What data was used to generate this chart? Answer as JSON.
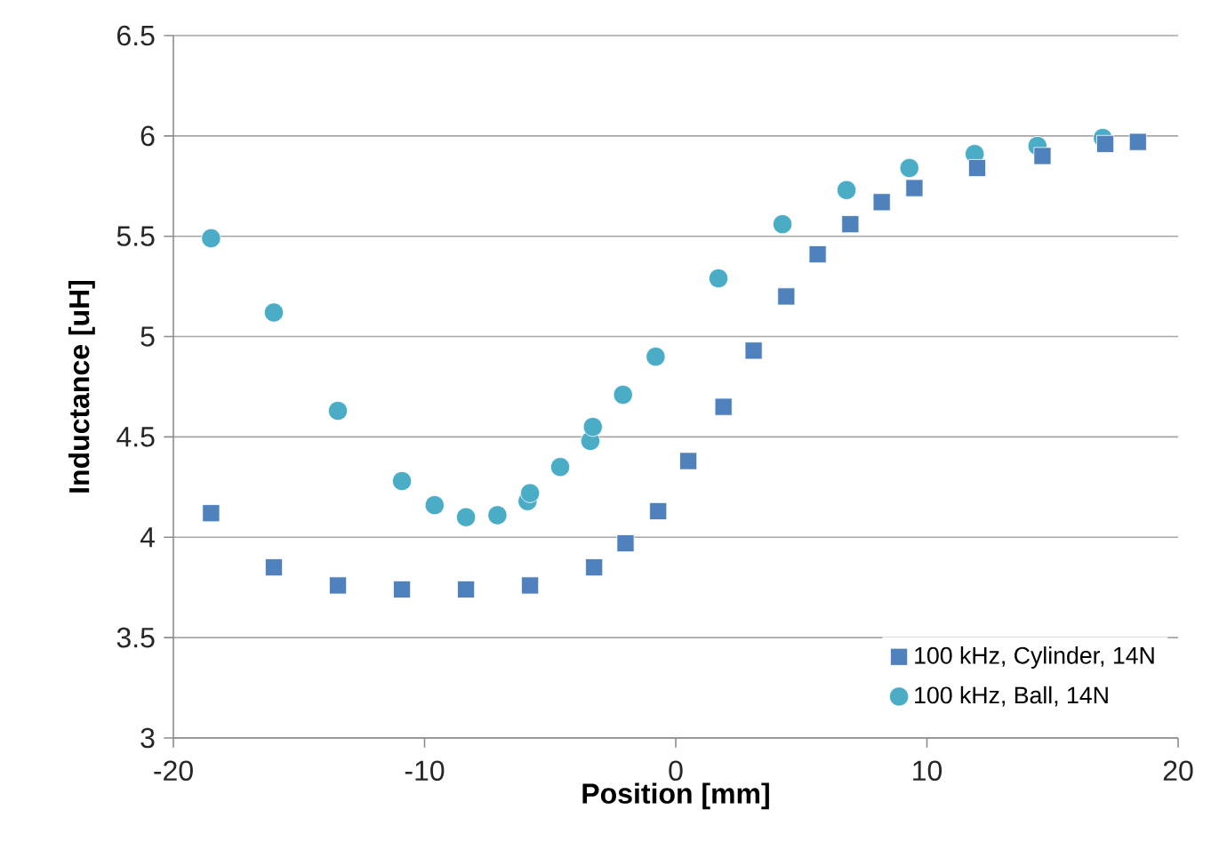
{
  "chart_data": {
    "type": "scatter",
    "xlabel": "Position [mm]",
    "ylabel": "Inductance [uH]",
    "xlim": [
      -20,
      20
    ],
    "xticks": [
      -20,
      -10,
      0,
      10,
      20
    ],
    "ylim": [
      3,
      6.5
    ],
    "yticks": [
      3,
      3.5,
      4,
      4.5,
      5,
      5.5,
      6,
      6.5
    ],
    "grid": "y",
    "legend": "bottom right",
    "series": [
      {
        "name": "100 kHz, Cylinder, 14N",
        "color": "#4f81bd",
        "marker": "square",
        "x": [
          -18.5,
          -16.0,
          -13.45,
          -10.9,
          -8.35,
          -5.8,
          -3.25,
          -2.0,
          -0.7,
          0.5,
          1.9,
          3.1,
          4.4,
          5.65,
          6.95,
          8.2,
          9.5,
          12.0,
          14.6,
          17.1,
          18.4
        ],
        "values": [
          4.12,
          3.85,
          3.76,
          3.74,
          3.74,
          3.76,
          3.85,
          3.97,
          4.13,
          4.38,
          4.65,
          4.93,
          5.2,
          5.41,
          5.56,
          5.67,
          5.74,
          5.84,
          5.9,
          5.96,
          5.97
        ]
      },
      {
        "name": "100 kHz, Ball, 14N",
        "color": "#4bacc6",
        "marker": "circle",
        "x": [
          -18.5,
          -16.0,
          -13.45,
          -10.9,
          -9.6,
          -8.35,
          -7.1,
          -5.9,
          -5.8,
          -4.6,
          -3.4,
          -3.3,
          -2.1,
          -0.8,
          1.7,
          4.25,
          6.8,
          9.3,
          11.9,
          14.4,
          17.0
        ],
        "values": [
          5.49,
          5.12,
          4.63,
          4.28,
          4.16,
          4.1,
          4.11,
          4.18,
          4.22,
          4.35,
          4.48,
          4.55,
          4.71,
          4.9,
          5.29,
          5.56,
          5.73,
          5.84,
          5.91,
          5.95,
          5.99
        ]
      }
    ]
  }
}
